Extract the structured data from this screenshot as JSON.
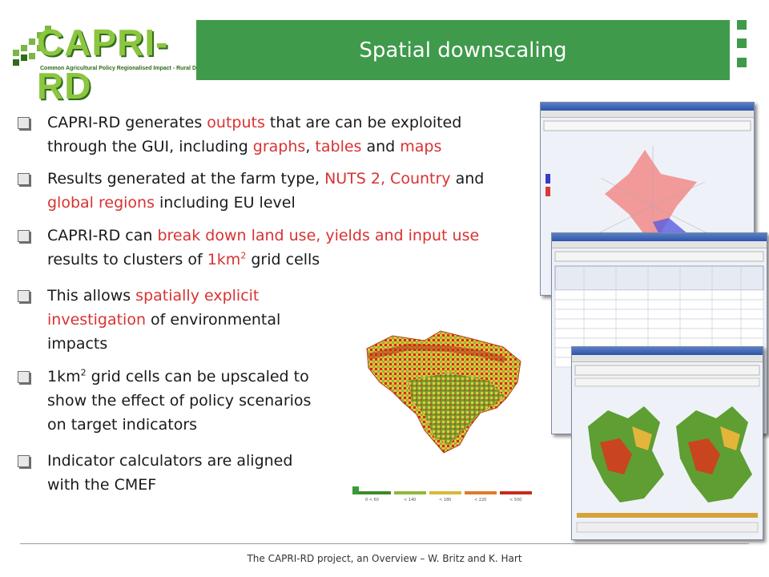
{
  "logo": {
    "text": "CAPRI-RD",
    "subtitle": "Common Agricultural Policy Regionalised Impact - Rural Development"
  },
  "title": "Spatial downscaling",
  "bullets": [
    {
      "segments": [
        "CAPRI-RD generates ",
        "outputs",
        " that are can be exploited"
      ]
    },
    {
      "segments": [
        "through the GUI, including ",
        "graphs",
        ", ",
        "tables",
        " and ",
        "maps"
      ]
    },
    {
      "segments": [
        "Results generated at the farm type, ",
        "NUTS 2, Country",
        " and"
      ]
    },
    {
      "segments": [
        "global regions",
        " including EU level"
      ]
    },
    {
      "segments": [
        "CAPRI-RD can ",
        "break down land use, yields and input use"
      ]
    },
    {
      "segments": [
        "results to clusters of ",
        "1km",
        "2",
        " grid cells"
      ]
    },
    {
      "segments": [
        "This allows ",
        "spatially explicit"
      ]
    },
    {
      "segments": [
        "investigation",
        " of environmental"
      ]
    },
    {
      "segments": [
        "impacts"
      ]
    },
    {
      "segments": [
        "1km",
        "2",
        " grid cells can be upscaled to"
      ]
    },
    {
      "segments": [
        "show the effect of policy scenarios"
      ]
    },
    {
      "segments": [
        "on target indicators"
      ]
    },
    {
      "segments": [
        "Indicator calculators are aligned"
      ]
    },
    {
      "segments": [
        "with the CMEF"
      ]
    }
  ],
  "map_legend": [
    "0 < 60",
    "< 140",
    "< 180",
    "< 220",
    "< 500"
  ],
  "footer": "The CAPRI-RD  project, an Overview – W. Britz and K. Hart",
  "colors": {
    "accent": "#3f9a4b",
    "highlight": "#d93232"
  }
}
